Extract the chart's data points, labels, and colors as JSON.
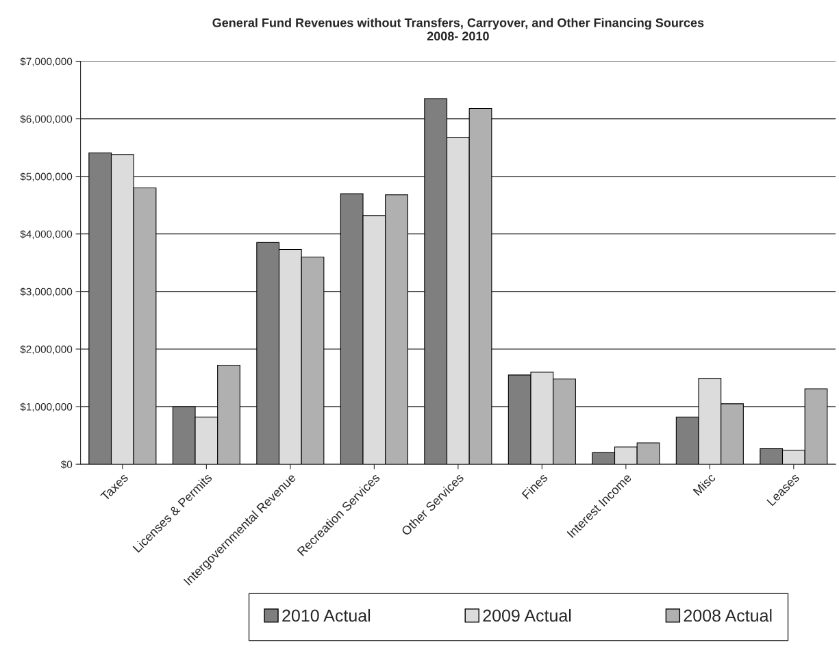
{
  "chart_data": {
    "type": "bar",
    "title": "General Fund Revenues without Transfers, Carryover, and Other Financing Sources\n2008- 2010",
    "categories": [
      "Taxes",
      "Licenses & Permits",
      "Intergovernmental Revenue",
      "Recreation Services",
      "Other Services",
      "Fines",
      "Interest Income",
      "Misc",
      "Leases"
    ],
    "series": [
      {
        "name": "2010 Actual",
        "color": "#7f7f7f",
        "values": [
          5410000,
          1000000,
          3850000,
          4700000,
          6350000,
          1550000,
          200000,
          820000,
          270000
        ]
      },
      {
        "name": "2009 Actual",
        "color": "#dcdcdc",
        "values": [
          5380000,
          820000,
          3730000,
          4320000,
          5680000,
          1600000,
          300000,
          1490000,
          240000
        ]
      },
      {
        "name": "2008 Actual",
        "color": "#b0b0b0",
        "values": [
          4800000,
          1720000,
          3600000,
          4680000,
          6180000,
          1480000,
          370000,
          1050000,
          1310000
        ]
      }
    ],
    "ylim": [
      0,
      7000000
    ],
    "yticks": [
      {
        "value": 0,
        "label": "$0"
      },
      {
        "value": 1000000,
        "label": "$1,000,000"
      },
      {
        "value": 2000000,
        "label": "$2,000,000"
      },
      {
        "value": 3000000,
        "label": "$3,000,000"
      },
      {
        "value": 4000000,
        "label": "$4,000,000"
      },
      {
        "value": 5000000,
        "label": "$5,000,000"
      },
      {
        "value": 6000000,
        "label": "$6,000,000"
      },
      {
        "value": 7000000,
        "label": "$7,000,000"
      }
    ],
    "grid": "y",
    "legend": "bottom"
  }
}
